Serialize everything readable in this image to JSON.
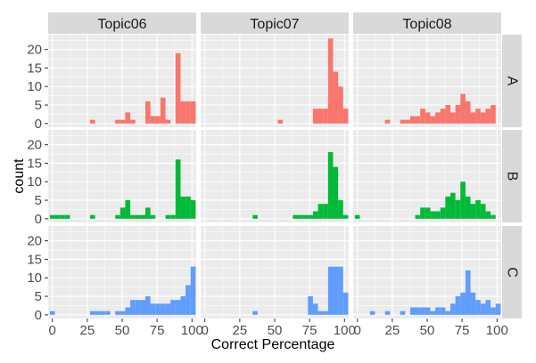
{
  "chart_data": {
    "type": "bar",
    "subtype": "faceted-histogram",
    "xlabel": "Correct Percentage",
    "ylabel": "count",
    "xlim": [
      -3,
      103
    ],
    "ylim": [
      -1,
      24
    ],
    "x_ticks": [
      0,
      25,
      50,
      75,
      100
    ],
    "y_ticks": [
      0,
      5,
      10,
      15,
      20
    ],
    "bin_width": 3.6,
    "bin_centers": [
      0,
      3.6,
      7.2,
      10.8,
      14.4,
      18,
      21.6,
      25.2,
      28.8,
      32.4,
      36,
      39.6,
      43.2,
      46.8,
      50.4,
      54,
      57.6,
      61.2,
      64.8,
      68.4,
      72,
      75.6,
      79.2,
      82.8,
      86.4,
      90,
      93.6,
      97.2,
      100.8
    ],
    "grid": true,
    "column_facets": [
      "Topic06",
      "Topic07",
      "Topic08"
    ],
    "row_facets": [
      "A",
      "B",
      "C"
    ],
    "colors": {
      "A": "#F8766D",
      "B": "#00BA38",
      "C": "#619CFF"
    },
    "panel_background": "#EBEBEB",
    "strip_background": "#D9D9D9",
    "grid_color": "#FFFFFF",
    "panels": [
      {
        "row": "A",
        "column": "Topic06",
        "values": [
          0,
          0,
          0,
          0,
          0,
          0,
          0,
          0,
          1,
          0,
          0,
          0,
          0,
          1,
          1,
          3,
          1,
          0,
          0,
          6,
          2,
          2,
          7,
          1,
          0,
          19,
          6,
          6,
          6
        ]
      },
      {
        "row": "A",
        "column": "Topic07",
        "values": [
          0,
          0,
          0,
          0,
          0,
          0,
          0,
          0,
          0,
          0,
          0,
          0,
          0,
          0,
          0,
          1,
          0,
          0,
          0,
          0,
          0,
          0,
          4,
          4,
          4,
          23,
          14,
          10,
          4
        ]
      },
      {
        "row": "A",
        "column": "Topic08",
        "values": [
          0,
          0,
          0,
          0,
          0,
          0,
          1,
          0,
          0,
          1,
          1,
          2,
          2,
          4,
          3,
          2,
          3,
          4,
          5,
          3,
          5,
          8,
          6,
          3,
          4,
          3,
          4,
          5,
          0
        ]
      },
      {
        "row": "B",
        "column": "Topic06",
        "values": [
          1,
          1,
          1,
          1,
          0,
          0,
          0,
          0,
          1,
          0,
          0,
          0,
          0,
          1,
          3,
          5,
          1,
          1,
          1,
          3,
          1,
          0,
          0,
          1,
          1,
          16,
          6,
          6,
          5
        ]
      },
      {
        "row": "B",
        "column": "Topic07",
        "values": [
          0,
          0,
          0,
          0,
          0,
          0,
          0,
          0,
          0,
          0,
          1,
          0,
          0,
          0,
          0,
          0,
          0,
          0,
          1,
          1,
          1,
          1,
          2,
          4,
          4,
          18,
          14,
          5,
          1
        ]
      },
      {
        "row": "B",
        "column": "Topic08",
        "values": [
          1,
          0,
          0,
          0,
          0,
          0,
          0,
          0,
          0,
          0,
          0,
          0,
          1,
          3,
          3,
          2,
          2,
          3,
          6,
          7,
          5,
          10,
          6,
          4,
          5,
          4,
          2,
          1,
          0
        ]
      },
      {
        "row": "C",
        "column": "Topic06",
        "values": [
          1,
          0,
          0,
          0,
          0,
          0,
          0,
          0,
          1,
          1,
          1,
          1,
          0,
          1,
          1,
          2,
          4,
          4,
          4,
          5,
          3,
          3,
          3,
          3,
          4,
          4,
          5,
          8,
          13
        ]
      },
      {
        "row": "C",
        "column": "Topic07",
        "values": [
          0,
          0,
          0,
          0,
          0,
          0,
          0,
          0,
          0,
          0,
          1,
          0,
          0,
          0,
          0,
          0,
          0,
          0,
          0,
          0,
          0,
          5,
          3,
          1,
          1,
          13,
          13,
          13,
          6
        ]
      },
      {
        "row": "C",
        "column": "Topic08",
        "values": [
          0,
          0,
          0,
          1,
          0,
          0,
          1,
          0,
          0,
          1,
          0,
          2,
          2,
          2,
          2,
          1,
          2,
          2,
          1,
          3,
          5,
          6,
          12,
          6,
          4,
          3,
          4,
          2,
          3
        ]
      }
    ]
  }
}
